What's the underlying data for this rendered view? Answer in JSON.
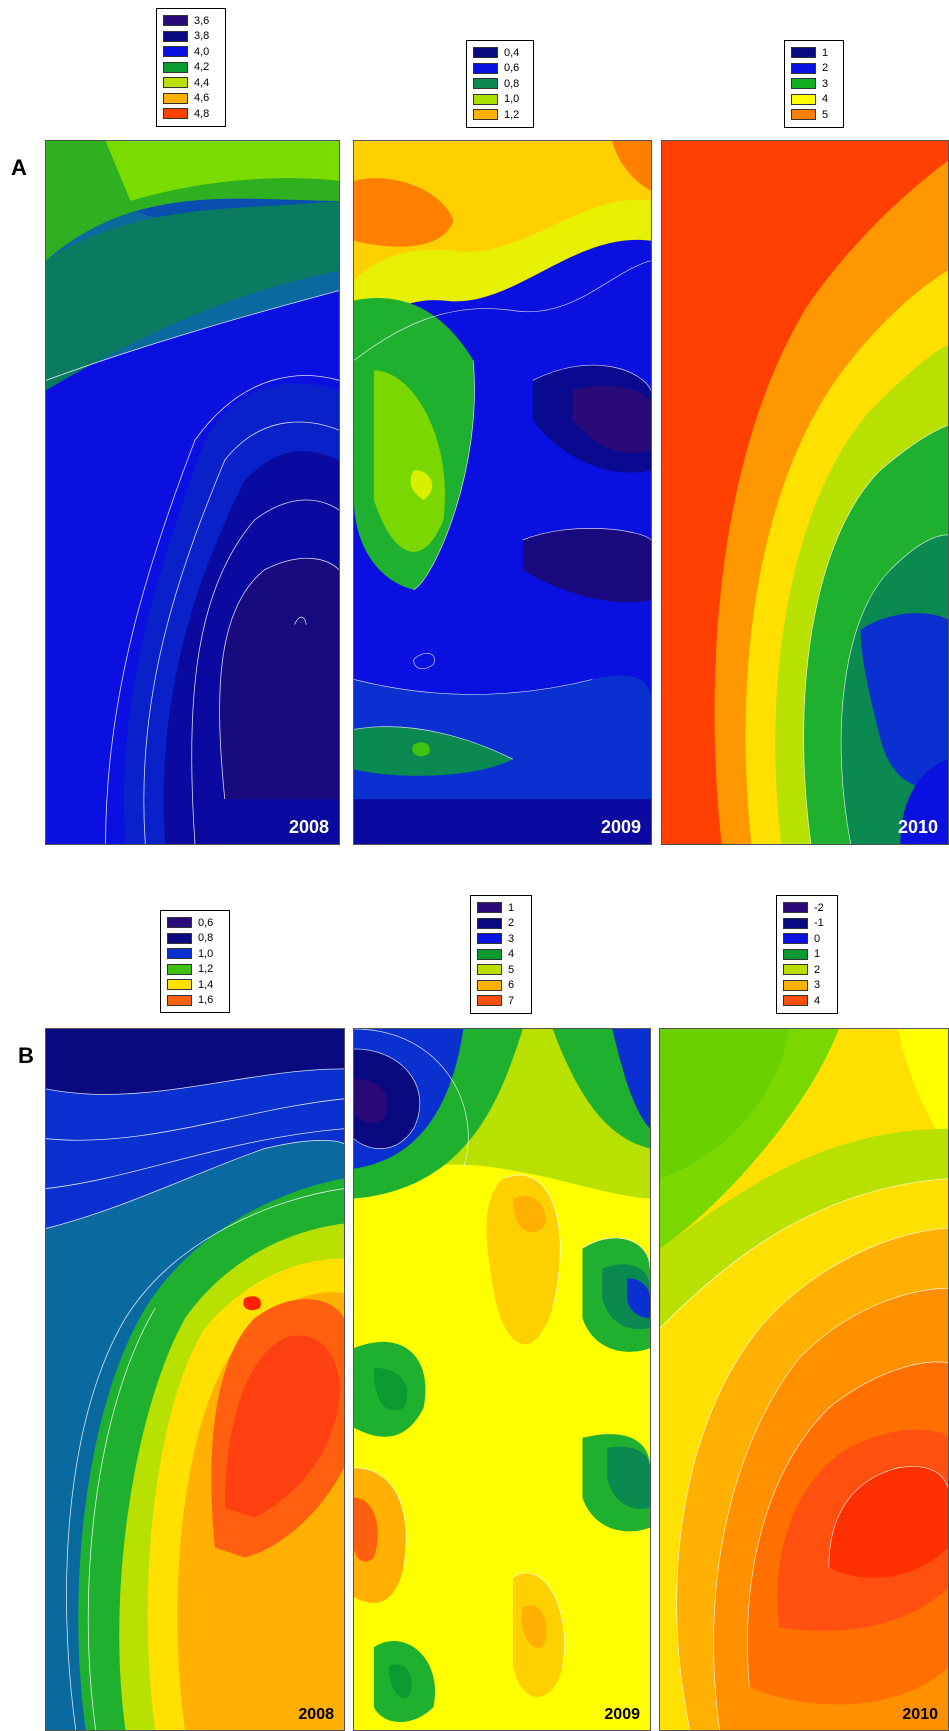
{
  "panels": [
    {
      "letter": "A",
      "maps": [
        {
          "year": "2008",
          "legend": [
            {
              "label": "3,6",
              "color": "#2a0a78"
            },
            {
              "label": "3,8",
              "color": "#0a0a80"
            },
            {
              "label": "4,0",
              "color": "#0a10e0"
            },
            {
              "label": "4,2",
              "color": "#0a9a30"
            },
            {
              "label": "4,4",
              "color": "#b8e000"
            },
            {
              "label": "4,6",
              "color": "#ffb000"
            },
            {
              "label": "4,8",
              "color": "#ff4000"
            }
          ]
        },
        {
          "year": "2009",
          "legend": [
            {
              "label": "0,4",
              "color": "#0a0a80"
            },
            {
              "label": "0,6",
              "color": "#0a10e0"
            },
            {
              "label": "0,8",
              "color": "#0a8a50"
            },
            {
              "label": "1,0",
              "color": "#a8e000"
            },
            {
              "label": "1,2",
              "color": "#ffb000"
            }
          ]
        },
        {
          "year": "2010",
          "legend": [
            {
              "label": "1",
              "color": "#0a0a80"
            },
            {
              "label": "2",
              "color": "#0a10e0"
            },
            {
              "label": "3",
              "color": "#10b020"
            },
            {
              "label": "4",
              "color": "#ffff00"
            },
            {
              "label": "5",
              "color": "#ff8000"
            }
          ]
        }
      ]
    },
    {
      "letter": "B",
      "maps": [
        {
          "year": "2008",
          "legend": [
            {
              "label": "0,6",
              "color": "#2a0a78"
            },
            {
              "label": "0,8",
              "color": "#0a0a80"
            },
            {
              "label": "1,0",
              "color": "#0a30d0"
            },
            {
              "label": "1,2",
              "color": "#40c010"
            },
            {
              "label": "1,4",
              "color": "#ffe000"
            },
            {
              "label": "1,6",
              "color": "#ff6010"
            }
          ]
        },
        {
          "year": "2009",
          "legend": [
            {
              "label": "1",
              "color": "#2a0a78"
            },
            {
              "label": "2",
              "color": "#0a0a80"
            },
            {
              "label": "3",
              "color": "#0a10e0"
            },
            {
              "label": "4",
              "color": "#0a9a30"
            },
            {
              "label": "5",
              "color": "#b8e000"
            },
            {
              "label": "6",
              "color": "#ffb000"
            },
            {
              "label": "7",
              "color": "#ff5010"
            }
          ]
        },
        {
          "year": "2010",
          "legend": [
            {
              "label": "-2",
              "color": "#2a0a78"
            },
            {
              "label": "-1",
              "color": "#0a0a80"
            },
            {
              "label": "0",
              "color": "#0a10e0"
            },
            {
              "label": "1",
              "color": "#0a9a30"
            },
            {
              "label": "2",
              "color": "#b8e000"
            },
            {
              "label": "3",
              "color": "#ffb000"
            },
            {
              "label": "4",
              "color": "#ff5010"
            }
          ]
        }
      ]
    }
  ]
}
